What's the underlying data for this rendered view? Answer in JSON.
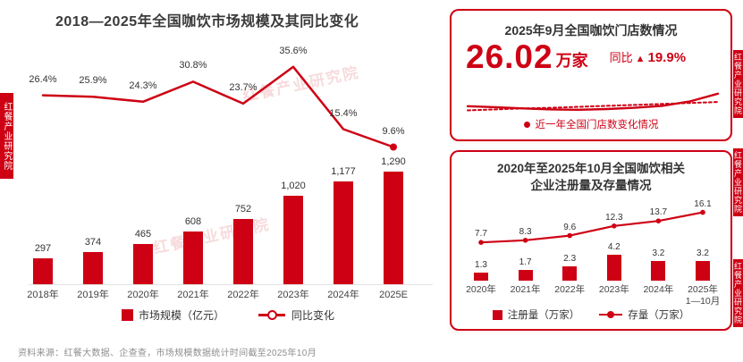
{
  "page": {
    "watermark": "红餐产业研究院",
    "source_note": "资料来源：红餐大数据、企查查，市场规模数据统计时间截至2025年10月"
  },
  "colors": {
    "accent": "#CE0014",
    "dark": "#333333",
    "gray": "#8F8F8F"
  },
  "chart_data": [
    {
      "id": "market",
      "type": "bar+line",
      "title": "2018—2025年全国咖饮市场规模及其同比变化",
      "categories": [
        "2018年",
        "2019年",
        "2020年",
        "2021年",
        "2022年",
        "2023年",
        "2024年",
        "2025E"
      ],
      "series": [
        {
          "name": "市场规模（亿元）",
          "type": "bar",
          "values": [
            297,
            374,
            465,
            608,
            752,
            1020,
            1177,
            1290
          ],
          "labels": [
            "297",
            "374",
            "465",
            "608",
            "752",
            "1,020",
            "1,177",
            "1,290"
          ]
        },
        {
          "name": "同比变化",
          "type": "line",
          "values": [
            26.4,
            25.9,
            24.3,
            30.8,
            23.7,
            35.6,
            15.4,
            9.6
          ],
          "labels": [
            "26.4%",
            "25.9%",
            "24.3%",
            "30.8%",
            "23.7%",
            "35.6%",
            "15.4%",
            "9.6%"
          ]
        }
      ],
      "legend": [
        "市场规模（亿元）",
        "同比变化"
      ],
      "legend_position": "bottom"
    },
    {
      "id": "stores",
      "type": "line",
      "title": "2025年9月全国咖饮门店数情况",
      "headline": {
        "value": "26.02",
        "unit": "万家",
        "yoy_label": "同比",
        "yoy_arrow": "▲",
        "yoy_value": "19.9%"
      },
      "legend": [
        "近一年全国门店数变化情况"
      ],
      "trend_solid": [
        0.55,
        0.58,
        0.62,
        0.65,
        0.66,
        0.64,
        0.6,
        0.54,
        0.4,
        0.16
      ],
      "trend_dotted": [
        0.68,
        0.65,
        0.62,
        0.6,
        0.57,
        0.54,
        0.51,
        0.48,
        0.45,
        0.42
      ]
    },
    {
      "id": "enterprises",
      "type": "bar+line",
      "title_line1": "2020年至2025年10月全国咖饮相关",
      "title_line2": "企业注册量及存量情况",
      "categories": [
        "2020年",
        "2021年",
        "2022年",
        "2023年",
        "2024年",
        "2025年\n1—10月"
      ],
      "series": [
        {
          "name": "注册量（万家）",
          "type": "bar",
          "values": [
            1.3,
            1.7,
            2.3,
            4.2,
            3.2,
            3.2
          ],
          "labels": [
            "1.3",
            "1.7",
            "2.3",
            "4.2",
            "3.2",
            "3.2"
          ]
        },
        {
          "name": "存量（万家）",
          "type": "line",
          "values": [
            7.7,
            8.3,
            9.6,
            12.3,
            13.7,
            16.1
          ],
          "labels": [
            "7.7",
            "8.3",
            "9.6",
            "12.3",
            "13.7",
            "16.1"
          ]
        }
      ],
      "legend": [
        "注册量（万家）",
        "存量（万家）"
      ],
      "legend_position": "bottom"
    }
  ]
}
